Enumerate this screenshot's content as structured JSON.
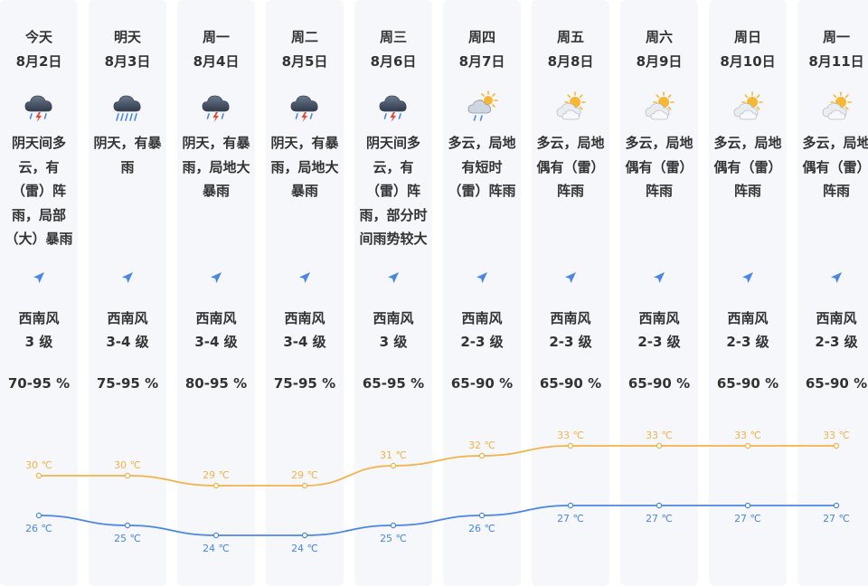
{
  "days": [
    {
      "day": "今天",
      "date": "8月2日",
      "icon": "thunderstorm-rain-icon",
      "desc_lines": [
        "阴天间多",
        "云，有",
        "（雷）阵",
        "雨，局部",
        "（大）暴雨"
      ],
      "wind_dir": "西南风",
      "wind_level": "3 级",
      "humidity": "70-95 %",
      "high_label": "30 ℃",
      "low_label": "26 ℃"
    },
    {
      "day": "明天",
      "date": "8月3日",
      "icon": "heavy-rain-icon",
      "desc_lines": [
        "阴天，有暴",
        "雨"
      ],
      "wind_dir": "西南风",
      "wind_level": "3-4 级",
      "humidity": "75-95 %",
      "high_label": "30 ℃",
      "low_label": "25 ℃"
    },
    {
      "day": "周一",
      "date": "8月4日",
      "icon": "thunderstorm-rain-icon",
      "desc_lines": [
        "阴天，有暴",
        "雨，局地大",
        "暴雨"
      ],
      "wind_dir": "西南风",
      "wind_level": "3-4 级",
      "humidity": "80-95 %",
      "high_label": "29 ℃",
      "low_label": "24 ℃"
    },
    {
      "day": "周二",
      "date": "8月5日",
      "icon": "thunderstorm-rain-icon",
      "desc_lines": [
        "阴天，有暴",
        "雨，局地大",
        "暴雨"
      ],
      "wind_dir": "西南风",
      "wind_level": "3-4 级",
      "humidity": "75-95 %",
      "high_label": "29 ℃",
      "low_label": "24 ℃"
    },
    {
      "day": "周三",
      "date": "8月6日",
      "icon": "thunderstorm-rain-icon",
      "desc_lines": [
        "阴天间多",
        "云，有",
        "（雷）阵",
        "雨，部分时",
        "间雨势较大"
      ],
      "wind_dir": "西南风",
      "wind_level": "3 级",
      "humidity": "65-95 %",
      "high_label": "31 ℃",
      "low_label": "25 ℃"
    },
    {
      "day": "周四",
      "date": "8月7日",
      "icon": "sun-shower-icon",
      "desc_lines": [
        "多云，局地",
        "有短时",
        "（雷）阵雨"
      ],
      "wind_dir": "西南风",
      "wind_level": "2-3 级",
      "humidity": "65-90 %",
      "high_label": "32 ℃",
      "low_label": "26 ℃"
    },
    {
      "day": "周五",
      "date": "8月8日",
      "icon": "partly-cloudy-icon",
      "desc_lines": [
        "多云，局地",
        "偶有（雷）",
        "阵雨"
      ],
      "wind_dir": "西南风",
      "wind_level": "2-3 级",
      "humidity": "65-90 %",
      "high_label": "33 ℃",
      "low_label": "27 ℃"
    },
    {
      "day": "周六",
      "date": "8月9日",
      "icon": "partly-cloudy-icon",
      "desc_lines": [
        "多云，局地",
        "偶有（雷）",
        "阵雨"
      ],
      "wind_dir": "西南风",
      "wind_level": "2-3 级",
      "humidity": "65-90 %",
      "high_label": "33 ℃",
      "low_label": "27 ℃"
    },
    {
      "day": "周日",
      "date": "8月10日",
      "icon": "partly-cloudy-icon",
      "desc_lines": [
        "多云，局地",
        "偶有（雷）",
        "阵雨"
      ],
      "wind_dir": "西南风",
      "wind_level": "2-3 级",
      "humidity": "65-90 %",
      "high_label": "33 ℃",
      "low_label": "27 ℃"
    },
    {
      "day": "周一",
      "date": "8月11日",
      "icon": "partly-cloudy-icon",
      "desc_lines": [
        "多云，局地",
        "偶有（雷）",
        "阵雨"
      ],
      "wind_dir": "西南风",
      "wind_level": "2-3 级",
      "humidity": "65-90 %",
      "high_label": "33 ℃",
      "low_label": "27 ℃"
    }
  ],
  "wind_icon": "wind-direction-arrow-icon",
  "colors": {
    "high": "#f5b248",
    "low": "#4a86e8",
    "column_bg": "#f5f7fa",
    "text": "#333333"
  },
  "chart_data": {
    "type": "line",
    "x": [
      "8月2日",
      "8月3日",
      "8月4日",
      "8月5日",
      "8月6日",
      "8月7日",
      "8月8日",
      "8月9日",
      "8月10日",
      "8月11日"
    ],
    "series": [
      {
        "values": [
          30,
          30,
          29,
          29,
          31,
          32,
          33,
          33,
          33,
          33
        ]
      },
      {
        "values": [
          26,
          25,
          24,
          24,
          25,
          26,
          27,
          27,
          27,
          27
        ]
      }
    ],
    "unit": "℃"
  }
}
